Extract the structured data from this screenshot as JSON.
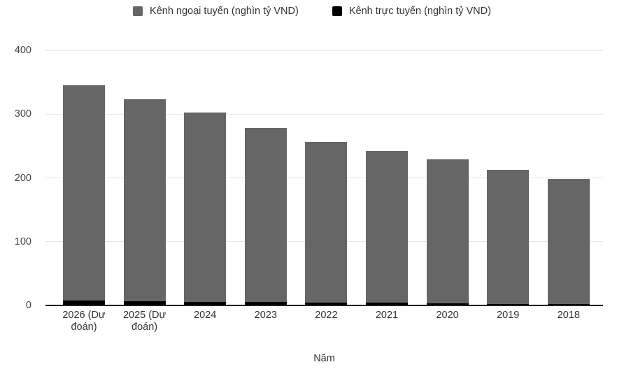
{
  "chart_data": {
    "type": "bar",
    "stacked": true,
    "title": "",
    "xlabel": "Năm",
    "ylabel": "",
    "categories": [
      "2026 (Dự đoán)",
      "2025 (Dự đoán)",
      "2024",
      "2023",
      "2022",
      "2021",
      "2020",
      "2019",
      "2018"
    ],
    "series": [
      {
        "name": "Kênh ngoại tuyến (nghìn tỷ VND)",
        "color": "#666666",
        "values": [
          337,
          316,
          297,
          273,
          253,
          238,
          226,
          211,
          196
        ]
      },
      {
        "name": "Kênh trực tuyến (nghìn tỷ VND)",
        "color": "#000000",
        "values": [
          8,
          7,
          5,
          5,
          4,
          4,
          3,
          2,
          2
        ]
      }
    ],
    "stacked_totals": [
      345,
      323,
      302,
      278,
      257,
      242,
      229,
      213,
      198
    ],
    "ylim": [
      0,
      400
    ],
    "yticks": [
      0,
      100,
      200,
      300,
      400
    ],
    "legend_position": "top",
    "grid": true,
    "colors": {
      "gridline": "#e6e6e6",
      "axis_line": "#212121",
      "tick_text": "#424242",
      "label_text": "#333333",
      "background": "#ffffff"
    }
  }
}
